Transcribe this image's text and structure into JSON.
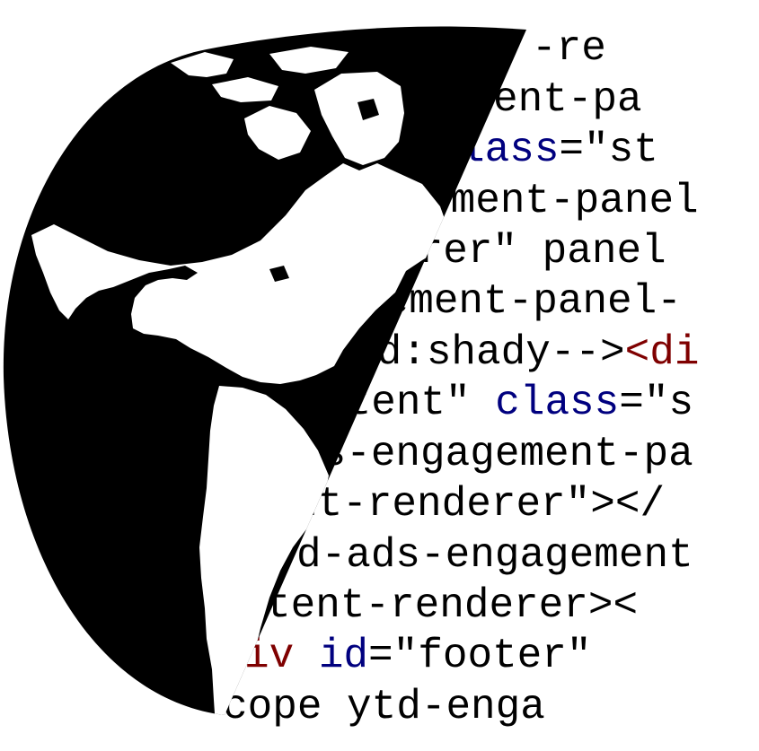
{
  "code": {
    "lines": [
      {
        "segments": [
          {
            "text": "-re",
            "color": "#000000"
          }
        ]
      },
      {
        "segments": [
          {
            "text": "ent-pa",
            "color": "#000000"
          }
        ]
      },
      {
        "segments": [
          {
            "text": "lass",
            "color": "#00007f"
          },
          {
            "text": "=\"st",
            "color": "#000000"
          }
        ]
      },
      {
        "segments": [
          {
            "text": "ement-panel",
            "color": "#000000"
          }
        ]
      },
      {
        "segments": [
          {
            "text": "erer\" panel",
            "color": "#000000"
          }
        ]
      },
      {
        "segments": [
          {
            "text": "gement-panel-",
            "color": "#000000"
          }
        ]
      },
      {
        "segments": [
          {
            "text": "ld:shady-->",
            "color": "#000000"
          },
          {
            "text": "<di",
            "color": "#7f0000"
          }
        ]
      },
      {
        "segments": [
          {
            "text": "ntent\" ",
            "color": "#000000"
          },
          {
            "text": "class",
            "color": "#00007f"
          },
          {
            "text": "=\"s",
            "color": "#000000"
          }
        ]
      },
      {
        "segments": [
          {
            "text": "us-engagement-pa",
            "color": "#000000"
          }
        ]
      },
      {
        "segments": [
          {
            "text": "nt-renderer\"></",
            "color": "#000000"
          }
        ]
      },
      {
        "segments": [
          {
            "text": "d-ads-engagement",
            "color": "#000000"
          }
        ]
      },
      {
        "segments": [
          {
            "text": "tent-renderer><",
            "color": "#000000"
          }
        ]
      },
      {
        "segments": [
          {
            "text": "iv ",
            "color": "#7f0000"
          },
          {
            "text": "id",
            "color": "#00007f"
          },
          {
            "text": "=\"footer\"",
            "color": "#000000"
          }
        ]
      },
      {
        "segments": [
          {
            "text": "cope ytd-enga",
            "color": "#000000"
          }
        ]
      }
    ]
  },
  "colors": {
    "globe": "#000000",
    "background": "#ffffff",
    "attribute": "#00007f",
    "tag": "#7f0000",
    "text": "#000000"
  }
}
